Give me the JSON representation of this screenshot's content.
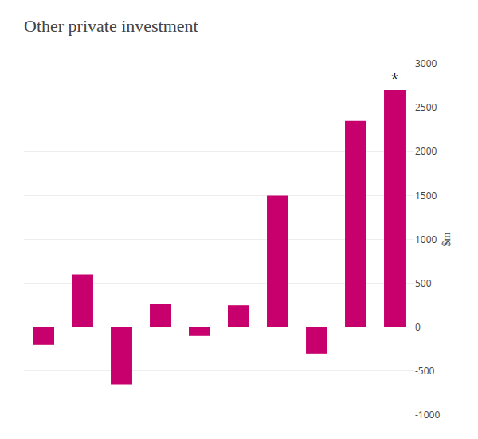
{
  "chart_data": {
    "type": "bar",
    "title": "Other private investment",
    "ylabel": "$m",
    "categories": [
      null,
      null,
      null,
      null,
      null,
      null,
      null,
      null,
      null,
      null
    ],
    "values": [
      -200,
      600,
      -650,
      270,
      -100,
      250,
      1500,
      -300,
      2350,
      2700
    ],
    "color": "#C8006E",
    "ylim": [
      -1000,
      3000
    ],
    "yticks": [
      -1000,
      -500,
      0,
      500,
      1000,
      1500,
      2000,
      2500,
      3000
    ],
    "grid": true,
    "tick_labels": "y",
    "annotations": [
      {
        "text": "*",
        "index": 9
      }
    ]
  }
}
